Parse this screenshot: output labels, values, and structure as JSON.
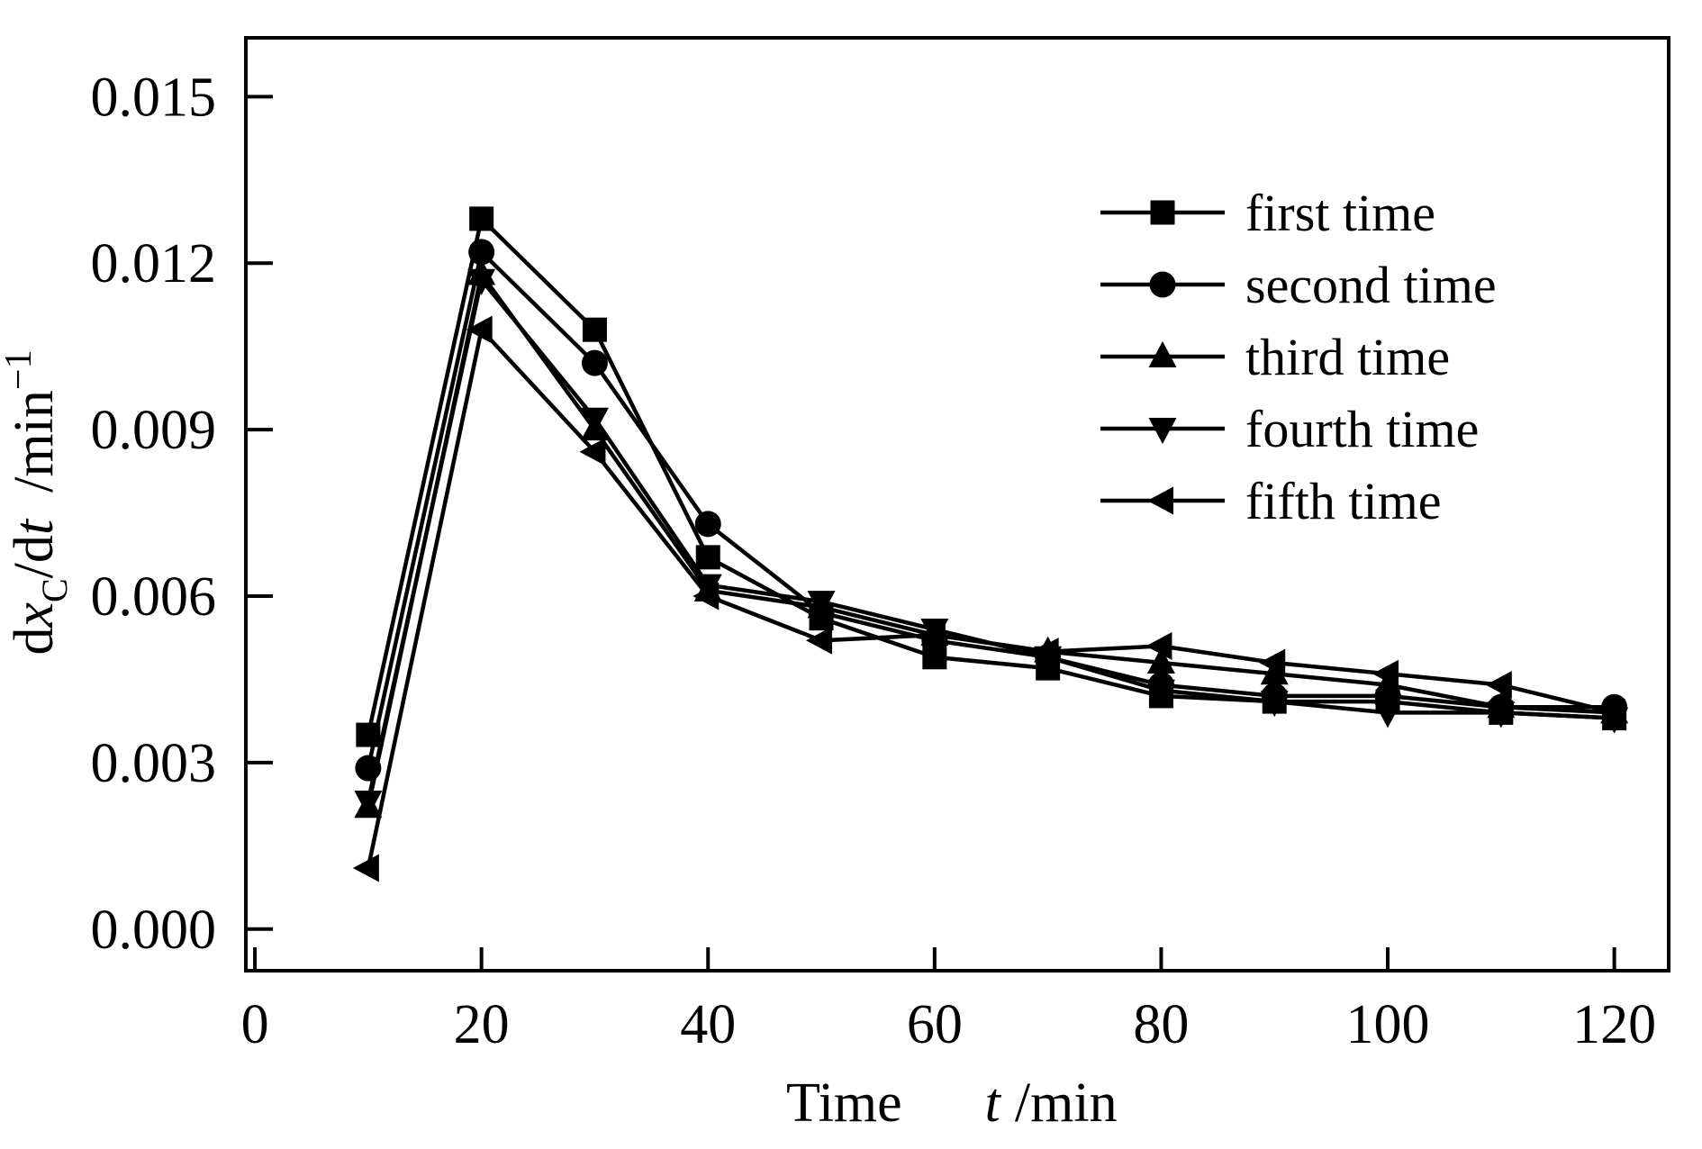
{
  "figure": {
    "background": "#ffffff",
    "ink_color": "#000000"
  },
  "chart_data": {
    "type": "line",
    "title": "",
    "x": [
      10,
      20,
      30,
      40,
      50,
      60,
      70,
      80,
      90,
      100,
      110,
      120
    ],
    "series": [
      {
        "name": "first time",
        "marker": "square",
        "values": [
          0.0035,
          0.0128,
          0.0108,
          0.0067,
          0.0056,
          0.0049,
          0.0047,
          0.0042,
          0.0041,
          0.0041,
          0.0039,
          0.0038
        ]
      },
      {
        "name": "second time",
        "marker": "circle",
        "values": [
          0.0029,
          0.0122,
          0.0102,
          0.0073,
          0.0057,
          0.0052,
          0.0049,
          0.0044,
          0.0042,
          0.0042,
          0.004,
          0.004
        ]
      },
      {
        "name": "third time",
        "marker": "triangle-up",
        "values": [
          0.0022,
          0.0118,
          0.009,
          0.0061,
          0.0058,
          0.0053,
          0.005,
          0.0048,
          0.0046,
          0.0044,
          0.004,
          0.0039
        ]
      },
      {
        "name": "fourth time",
        "marker": "triangle-down",
        "values": [
          0.0023,
          0.0117,
          0.0092,
          0.0062,
          0.0059,
          0.0054,
          0.0049,
          0.0043,
          0.0041,
          0.0039,
          0.0039,
          0.0038
        ]
      },
      {
        "name": "fifth time",
        "marker": "triangle-left",
        "values": [
          0.0011,
          0.0108,
          0.0086,
          0.006,
          0.0052,
          0.0053,
          0.005,
          0.0051,
          0.0048,
          0.0046,
          0.0044,
          0.0039
        ]
      }
    ],
    "xlabel": {
      "word": "Time",
      "var": "t",
      "unit": "/min"
    },
    "ylabel": {
      "pre": "d",
      "var1": "x",
      "sub": "C",
      "mid": "/d",
      "var2": "t",
      "unit": "/min",
      "sup": "−1"
    },
    "x_ticks": {
      "values": [
        0,
        20,
        40,
        60,
        80,
        100,
        120
      ],
      "labels": [
        "0",
        "20",
        "40",
        "60",
        "80",
        "100",
        "120"
      ]
    },
    "y_ticks": {
      "values": [
        0.0,
        0.003,
        0.006,
        0.009,
        0.012,
        0.015
      ],
      "labels": [
        "0.000",
        "0.003",
        "0.006",
        "0.009",
        "0.012",
        "0.015"
      ]
    },
    "xlim": [
      -0.8,
      124.8
    ],
    "ylim": [
      -0.00075,
      0.01606
    ],
    "grid": false,
    "legend_position": "top-right-inside",
    "line_color": "#000000",
    "marker_color": "#000000"
  }
}
